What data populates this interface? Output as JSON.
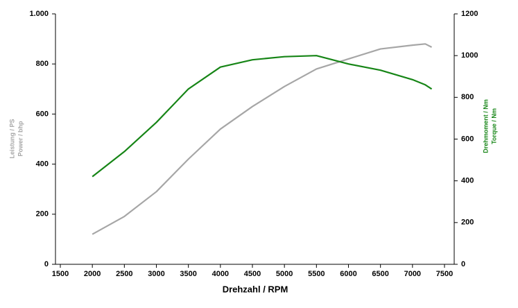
{
  "chart_data": {
    "type": "line",
    "x": [
      2000,
      2500,
      3000,
      3500,
      4000,
      4500,
      5000,
      5500,
      6000,
      6500,
      7000,
      7200,
      7300
    ],
    "series": [
      {
        "name": "Leistung / PS",
        "color": "#a6a6a6",
        "values": [
          120,
          191,
          290,
          420,
          540,
          630,
          710,
          780,
          820,
          860,
          875,
          880,
          867
        ]
      },
      {
        "name": "Drehmoment / Nm",
        "color": "#168516",
        "axis": "y2",
        "values": [
          420,
          540,
          680,
          840,
          945,
          980,
          995,
          1000,
          960,
          930,
          885,
          860,
          840
        ]
      }
    ],
    "xlabel": "Drehzahl / RPM",
    "ylabel": [
      "Leistung / PS",
      "Power / bhp"
    ],
    "y2label": [
      "Drehmoment / Nm",
      "Torque / Nm"
    ],
    "xlim": [
      1500,
      7500
    ],
    "xticks": [
      1500,
      2000,
      2500,
      3000,
      3500,
      4000,
      4500,
      5000,
      5500,
      6000,
      6500,
      7000,
      7500
    ],
    "ylim": [
      0,
      1000
    ],
    "yticks": [
      0,
      200,
      400,
      600,
      800,
      {
        "value": 1000,
        "label": "1.000"
      }
    ],
    "y2lim": [
      0,
      1200
    ],
    "y2ticks": [
      0,
      200,
      400,
      600,
      800,
      1000,
      1200
    ]
  }
}
